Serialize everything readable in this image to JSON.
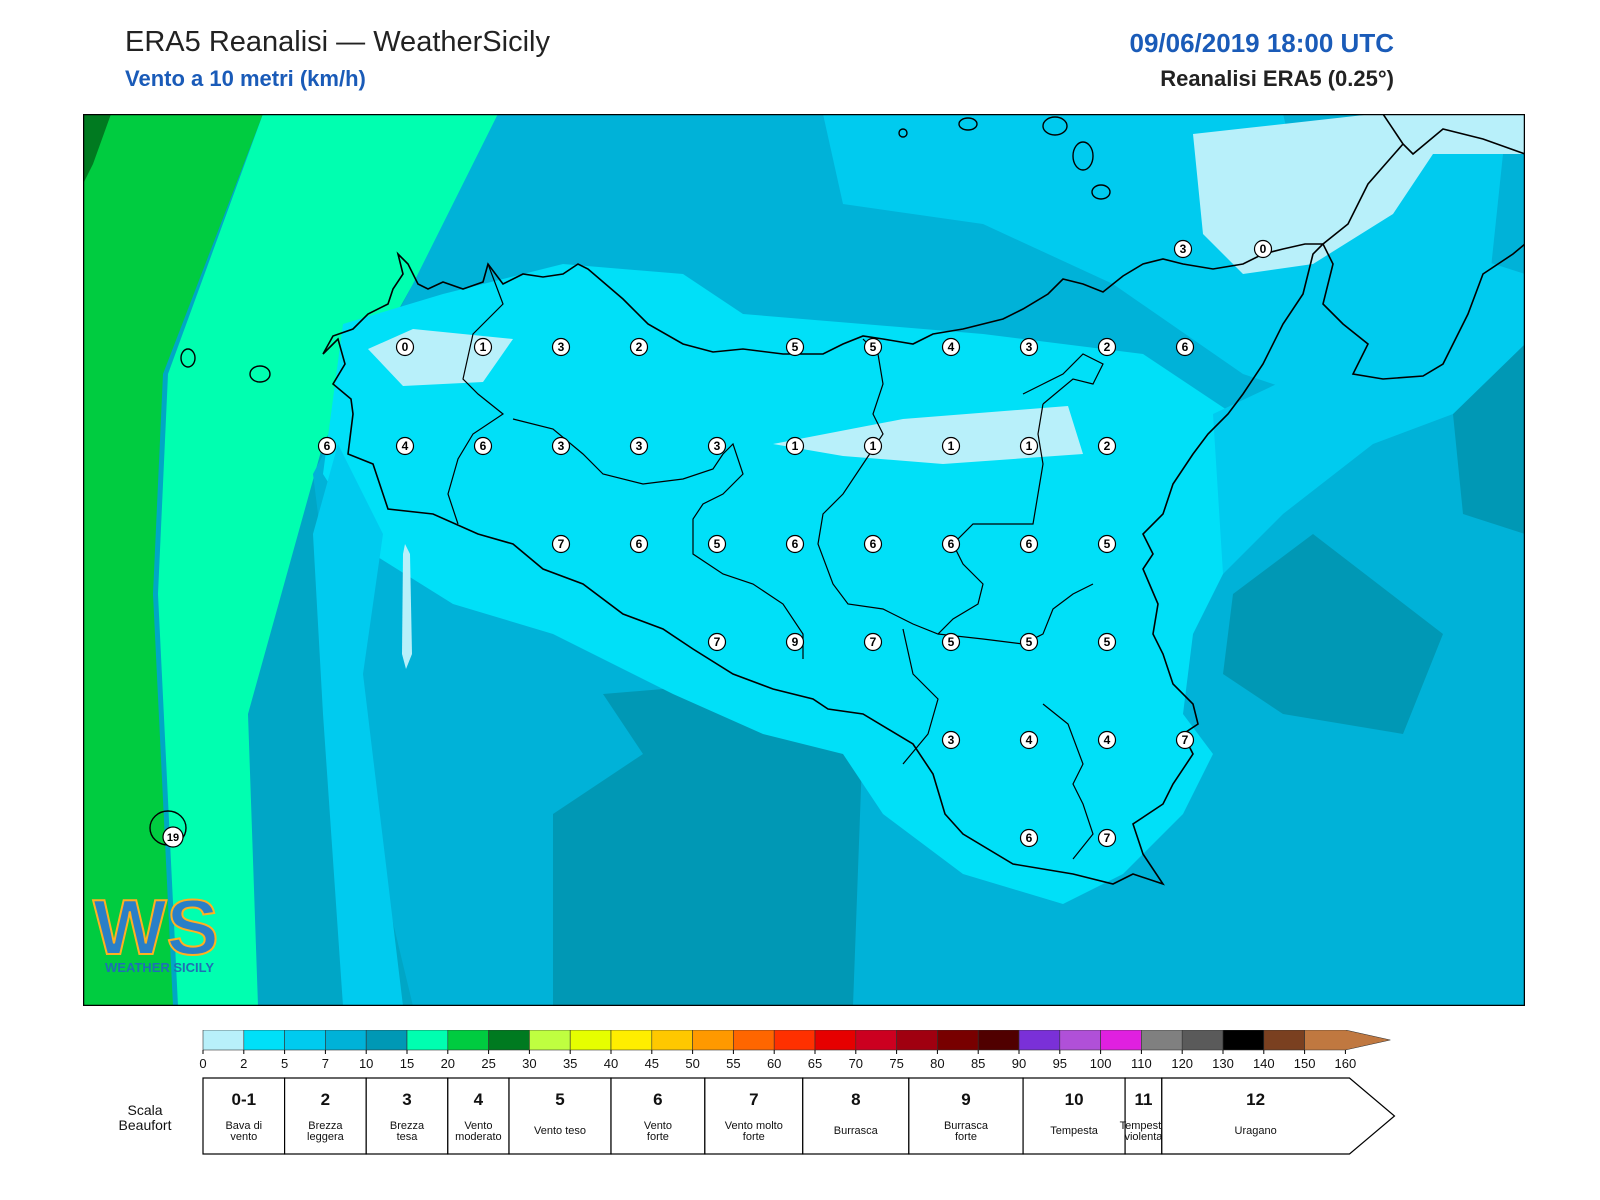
{
  "header": {
    "title": "ERA5 Reanalisi — WeatherSicily",
    "subtitle": "Vento a 10 metri (km/h)",
    "datetime": "09/06/2019 18:00 UTC",
    "source": "Reanalisi ERA5 (0.25°)"
  },
  "map": {
    "station_values": [
      {
        "label": "3"
      },
      {
        "label": "0"
      },
      {
        "label": "0"
      },
      {
        "label": "1"
      },
      {
        "label": "3"
      },
      {
        "label": "2"
      },
      {
        "label": "5"
      },
      {
        "label": "5"
      },
      {
        "label": "4"
      },
      {
        "label": "3"
      },
      {
        "label": "2"
      },
      {
        "label": "6"
      },
      {
        "label": "6"
      },
      {
        "label": "4"
      },
      {
        "label": "6"
      },
      {
        "label": "3"
      },
      {
        "label": "3"
      },
      {
        "label": "3"
      },
      {
        "label": "1"
      },
      {
        "label": "1"
      },
      {
        "label": "1"
      },
      {
        "label": "1"
      },
      {
        "label": "2"
      },
      {
        "label": "7"
      },
      {
        "label": "6"
      },
      {
        "label": "5"
      },
      {
        "label": "6"
      },
      {
        "label": "6"
      },
      {
        "label": "6"
      },
      {
        "label": "6"
      },
      {
        "label": "5"
      },
      {
        "label": "7"
      },
      {
        "label": "9"
      },
      {
        "label": "7"
      },
      {
        "label": "5"
      },
      {
        "label": "5"
      },
      {
        "label": "5"
      },
      {
        "label": "3"
      },
      {
        "label": "4"
      },
      {
        "label": "4"
      },
      {
        "label": "7"
      },
      {
        "label": "6"
      },
      {
        "label": "7"
      },
      {
        "label": "19"
      }
    ],
    "logo_text": "WS",
    "logo_subtext": "WEATHER SICILY"
  },
  "colorbar": {
    "colors": [
      "#b8f0fa",
      "#00e0f8",
      "#00cbef",
      "#00b2d8",
      "#0098b5",
      "#00ffb0",
      "#00cc40",
      "#007a20",
      "#bfff40",
      "#e6ff00",
      "#ffee00",
      "#ffc800",
      "#ff9900",
      "#ff6600",
      "#ff3000",
      "#e60000",
      "#cc0020",
      "#a00010",
      "#780000",
      "#500000",
      "#7a30d8",
      "#b050d8",
      "#e020e0",
      "#808080",
      "#5a5a5a",
      "#000000",
      "#7a4020",
      "#c07840"
    ],
    "ticks": [
      "0",
      "2",
      "5",
      "7",
      "10",
      "15",
      "20",
      "25",
      "30",
      "35",
      "40",
      "45",
      "50",
      "55",
      "60",
      "65",
      "70",
      "75",
      "80",
      "85",
      "90",
      "95",
      "100",
      "110",
      "120",
      "130",
      "140",
      "150",
      "160"
    ]
  },
  "beaufort": {
    "label": "Scala Beaufort",
    "scale": [
      {
        "number": "0-1",
        "name": "Bava di vento"
      },
      {
        "number": "2",
        "name": "Brezza leggera"
      },
      {
        "number": "3",
        "name": "Brezza tesa"
      },
      {
        "number": "4",
        "name": "Vento moderato"
      },
      {
        "number": "5",
        "name": "Vento teso"
      },
      {
        "number": "6",
        "name": "Vento forte"
      },
      {
        "number": "7",
        "name": "Vento molto forte"
      },
      {
        "number": "8",
        "name": "Burrasca"
      },
      {
        "number": "9",
        "name": "Burrasca forte"
      },
      {
        "number": "10",
        "name": "Tempesta"
      },
      {
        "number": "11",
        "name": "Tempesta violenta"
      },
      {
        "number": "12",
        "name": "Uragano"
      }
    ]
  }
}
